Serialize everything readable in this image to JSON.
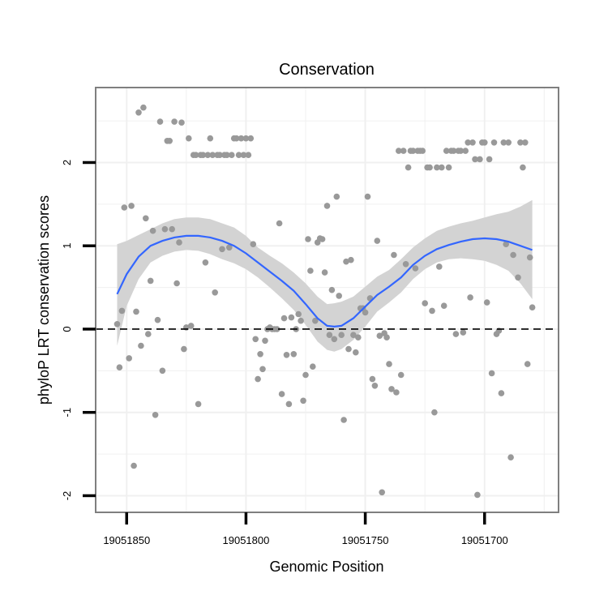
{
  "chart_data": {
    "type": "scatter",
    "title": "Conservation",
    "xlabel": "Genomic Position",
    "ylabel": "phyloP LRT conservation scores",
    "x_reversed": true,
    "xlim": [
      19051669,
      19051863
    ],
    "ylim": [
      -2.2,
      2.9
    ],
    "x_ticks": [
      19051850,
      19051800,
      19051750,
      19051700
    ],
    "y_ticks": [
      -2,
      -1,
      0,
      1,
      2
    ],
    "x_tick_labels": [
      "19051850",
      "19051800",
      "19051750",
      "19051700"
    ],
    "y_tick_labels": [
      "-2",
      "-1",
      "0",
      "1",
      "2"
    ],
    "grid": true,
    "reference_line": {
      "y": 0,
      "style": "dashed"
    },
    "colors": {
      "points": "#999999",
      "smooth": "#3366ff",
      "ribbon": "#d3d3d3",
      "grid": "#f0f0f0",
      "border": "#7f7f7f",
      "refline": "#000000"
    },
    "series": [
      {
        "name": "phyloP scores",
        "kind": "points",
        "points": [
          [
            19051854,
            0.06
          ],
          [
            19051853,
            -0.46
          ],
          [
            19051852,
            0.22
          ],
          [
            19051851,
            1.46
          ],
          [
            19051849,
            -0.35
          ],
          [
            19051848,
            1.48
          ],
          [
            19051847,
            -1.64
          ],
          [
            19051846,
            0.21
          ],
          [
            19051845,
            2.6
          ],
          [
            19051844,
            -0.2
          ],
          [
            19051843,
            2.66
          ],
          [
            19051842,
            1.33
          ],
          [
            19051841,
            -0.06
          ],
          [
            19051840,
            0.58
          ],
          [
            19051839,
            1.18
          ],
          [
            19051838,
            -1.03
          ],
          [
            19051837,
            0.11
          ],
          [
            19051836,
            2.49
          ],
          [
            19051835,
            -0.5
          ],
          [
            19051834,
            1.2
          ],
          [
            19051833,
            2.26
          ],
          [
            19051832,
            2.26
          ],
          [
            19051831,
            1.2
          ],
          [
            19051830,
            2.49
          ],
          [
            19051829,
            0.55
          ],
          [
            19051828,
            1.04
          ],
          [
            19051827,
            2.48
          ],
          [
            19051826,
            -0.24
          ],
          [
            19051825,
            0.02
          ],
          [
            19051824,
            2.29
          ],
          [
            19051823,
            0.04
          ],
          [
            19051822,
            2.09
          ],
          [
            19051821,
            2.09
          ],
          [
            19051820,
            -0.9
          ],
          [
            19051819,
            2.09
          ],
          [
            19051818,
            2.09
          ],
          [
            19051817,
            0.8
          ],
          [
            19051816,
            2.09
          ],
          [
            19051815,
            2.29
          ],
          [
            19051814,
            2.09
          ],
          [
            19051813,
            0.44
          ],
          [
            19051812,
            2.09
          ],
          [
            19051811,
            2.09
          ],
          [
            19051810,
            0.96
          ],
          [
            19051809,
            2.09
          ],
          [
            19051808,
            2.09
          ],
          [
            19051807,
            0.98
          ],
          [
            19051806,
            2.09
          ],
          [
            19051805,
            2.29
          ],
          [
            19051804,
            2.29
          ],
          [
            19051803,
            2.09
          ],
          [
            19051802,
            2.29
          ],
          [
            19051801,
            2.09
          ],
          [
            19051800,
            2.29
          ],
          [
            19051799,
            2.09
          ],
          [
            19051798,
            2.29
          ],
          [
            19051797,
            1.02
          ],
          [
            19051796,
            -0.12
          ],
          [
            19051795,
            -0.6
          ],
          [
            19051794,
            -0.3
          ],
          [
            19051793,
            -0.48
          ],
          [
            19051792,
            -0.14
          ],
          [
            19051791,
            0.0
          ],
          [
            19051790,
            0.02
          ],
          [
            19051789,
            0.0
          ],
          [
            19051788,
            0.0
          ],
          [
            19051787,
            0.0
          ],
          [
            19051786,
            1.27
          ],
          [
            19051785,
            -0.78
          ],
          [
            19051784,
            0.13
          ],
          [
            19051783,
            -0.31
          ],
          [
            19051782,
            -0.9
          ],
          [
            19051781,
            0.14
          ],
          [
            19051780,
            -0.3
          ],
          [
            19051779,
            0.0
          ],
          [
            19051778,
            0.18
          ],
          [
            19051777,
            0.1
          ],
          [
            19051776,
            -0.86
          ],
          [
            19051775,
            -0.55
          ],
          [
            19051774,
            1.08
          ],
          [
            19051773,
            0.7
          ],
          [
            19051772,
            -0.45
          ],
          [
            19051771,
            0.1
          ],
          [
            19051770,
            1.04
          ],
          [
            19051769,
            1.09
          ],
          [
            19051768,
            1.08
          ],
          [
            19051767,
            0.68
          ],
          [
            19051766,
            1.48
          ],
          [
            19051765,
            -0.07
          ],
          [
            19051764,
            0.47
          ],
          [
            19051763,
            -0.12
          ],
          [
            19051762,
            1.59
          ],
          [
            19051761,
            0.4
          ],
          [
            19051760,
            -0.07
          ],
          [
            19051759,
            -1.09
          ],
          [
            19051758,
            0.81
          ],
          [
            19051757,
            -0.24
          ],
          [
            19051756,
            0.83
          ],
          [
            19051755,
            -0.07
          ],
          [
            19051754,
            -0.28
          ],
          [
            19051753,
            -0.1
          ],
          [
            19051752,
            0.25
          ],
          [
            19051751,
            0.25
          ],
          [
            19051750,
            0.2
          ],
          [
            19051749,
            1.59
          ],
          [
            19051748,
            0.37
          ],
          [
            19051747,
            -0.6
          ],
          [
            19051746,
            -0.68
          ],
          [
            19051745,
            1.06
          ],
          [
            19051744,
            -0.08
          ],
          [
            19051743,
            -1.96
          ],
          [
            19051742,
            -0.05
          ],
          [
            19051741,
            -0.1
          ],
          [
            19051740,
            -0.42
          ],
          [
            19051739,
            -0.72
          ],
          [
            19051738,
            0.89
          ],
          [
            19051737,
            -0.76
          ],
          [
            19051736,
            2.14
          ],
          [
            19051735,
            -0.55
          ],
          [
            19051734,
            2.14
          ],
          [
            19051733,
            0.78
          ],
          [
            19051732,
            1.94
          ],
          [
            19051731,
            2.14
          ],
          [
            19051730,
            2.14
          ],
          [
            19051729,
            0.73
          ],
          [
            19051728,
            2.14
          ],
          [
            19051727,
            2.14
          ],
          [
            19051726,
            2.14
          ],
          [
            19051725,
            0.31
          ],
          [
            19051724,
            1.94
          ],
          [
            19051723,
            1.94
          ],
          [
            19051722,
            0.22
          ],
          [
            19051721,
            -1.0
          ],
          [
            19051720,
            1.94
          ],
          [
            19051719,
            0.75
          ],
          [
            19051718,
            1.94
          ],
          [
            19051717,
            0.28
          ],
          [
            19051716,
            2.14
          ],
          [
            19051715,
            1.94
          ],
          [
            19051714,
            2.14
          ],
          [
            19051713,
            2.14
          ],
          [
            19051712,
            -0.06
          ],
          [
            19051711,
            2.14
          ],
          [
            19051710,
            2.14
          ],
          [
            19051709,
            -0.04
          ],
          [
            19051708,
            2.14
          ],
          [
            19051707,
            2.24
          ],
          [
            19051706,
            0.38
          ],
          [
            19051705,
            2.24
          ],
          [
            19051704,
            2.04
          ],
          [
            19051703,
            -1.99
          ],
          [
            19051702,
            2.04
          ],
          [
            19051701,
            2.24
          ],
          [
            19051700,
            2.24
          ],
          [
            19051699,
            0.32
          ],
          [
            19051698,
            2.04
          ],
          [
            19051697,
            -0.53
          ],
          [
            19051696,
            2.24
          ],
          [
            19051695,
            -0.06
          ],
          [
            19051694,
            -0.02
          ],
          [
            19051693,
            -0.77
          ],
          [
            19051692,
            2.24
          ],
          [
            19051691,
            1.02
          ],
          [
            19051690,
            2.24
          ],
          [
            19051689,
            -1.54
          ],
          [
            19051688,
            0.89
          ],
          [
            19051686,
            0.62
          ],
          [
            19051685,
            2.24
          ],
          [
            19051684,
            1.94
          ],
          [
            19051683,
            2.24
          ],
          [
            19051682,
            -0.42
          ],
          [
            19051681,
            0.86
          ],
          [
            19051680,
            0.26
          ]
        ]
      },
      {
        "name": "smooth fit",
        "kind": "line",
        "points": [
          [
            19051854,
            0.42
          ],
          [
            19051850,
            0.66
          ],
          [
            19051845,
            0.87
          ],
          [
            19051840,
            1.0
          ],
          [
            19051835,
            1.06
          ],
          [
            19051830,
            1.1
          ],
          [
            19051825,
            1.12
          ],
          [
            19051820,
            1.12
          ],
          [
            19051815,
            1.1
          ],
          [
            19051810,
            1.06
          ],
          [
            19051805,
            1.0
          ],
          [
            19051800,
            0.91
          ],
          [
            19051795,
            0.8
          ],
          [
            19051790,
            0.69
          ],
          [
            19051785,
            0.58
          ],
          [
            19051780,
            0.46
          ],
          [
            19051775,
            0.3
          ],
          [
            19051770,
            0.13
          ],
          [
            19051766,
            0.04
          ],
          [
            19051763,
            0.03
          ],
          [
            19051760,
            0.04
          ],
          [
            19051755,
            0.13
          ],
          [
            19051750,
            0.27
          ],
          [
            19051745,
            0.41
          ],
          [
            19051740,
            0.51
          ],
          [
            19051735,
            0.62
          ],
          [
            19051730,
            0.77
          ],
          [
            19051725,
            0.88
          ],
          [
            19051720,
            0.96
          ],
          [
            19051715,
            1.01
          ],
          [
            19051710,
            1.05
          ],
          [
            19051705,
            1.08
          ],
          [
            19051700,
            1.09
          ],
          [
            19051695,
            1.08
          ],
          [
            19051690,
            1.05
          ],
          [
            19051685,
            1.0
          ],
          [
            19051680,
            0.95
          ]
        ]
      },
      {
        "name": "confidence band",
        "kind": "band",
        "points": [
          [
            19051854,
            -0.2,
            1.02
          ],
          [
            19051850,
            0.28,
            1.06
          ],
          [
            19051845,
            0.6,
            1.13
          ],
          [
            19051840,
            0.8,
            1.2
          ],
          [
            19051835,
            0.88,
            1.27
          ],
          [
            19051830,
            0.93,
            1.32
          ],
          [
            19051825,
            0.95,
            1.34
          ],
          [
            19051820,
            0.94,
            1.34
          ],
          [
            19051815,
            0.9,
            1.32
          ],
          [
            19051810,
            0.84,
            1.27
          ],
          [
            19051805,
            0.79,
            1.22
          ],
          [
            19051800,
            0.72,
            1.12
          ],
          [
            19051795,
            0.62,
            0.98
          ],
          [
            19051790,
            0.5,
            0.88
          ],
          [
            19051785,
            0.37,
            0.79
          ],
          [
            19051780,
            0.23,
            0.68
          ],
          [
            19051775,
            0.05,
            0.55
          ],
          [
            19051770,
            -0.15,
            0.39
          ],
          [
            19051766,
            -0.25,
            0.3
          ],
          [
            19051763,
            -0.27,
            0.31
          ],
          [
            19051760,
            -0.24,
            0.33
          ],
          [
            19051755,
            -0.13,
            0.39
          ],
          [
            19051750,
            0.03,
            0.51
          ],
          [
            19051745,
            0.21,
            0.63
          ],
          [
            19051740,
            0.32,
            0.71
          ],
          [
            19051735,
            0.44,
            0.84
          ],
          [
            19051730,
            0.6,
            0.98
          ],
          [
            19051725,
            0.72,
            1.09
          ],
          [
            19051720,
            0.8,
            1.18
          ],
          [
            19051715,
            0.84,
            1.23
          ],
          [
            19051710,
            0.85,
            1.27
          ],
          [
            19051705,
            0.84,
            1.3
          ],
          [
            19051700,
            0.82,
            1.34
          ],
          [
            19051695,
            0.77,
            1.38
          ],
          [
            19051690,
            0.7,
            1.41
          ],
          [
            19051685,
            0.55,
            1.47
          ],
          [
            19051680,
            0.36,
            1.55
          ]
        ]
      }
    ]
  }
}
